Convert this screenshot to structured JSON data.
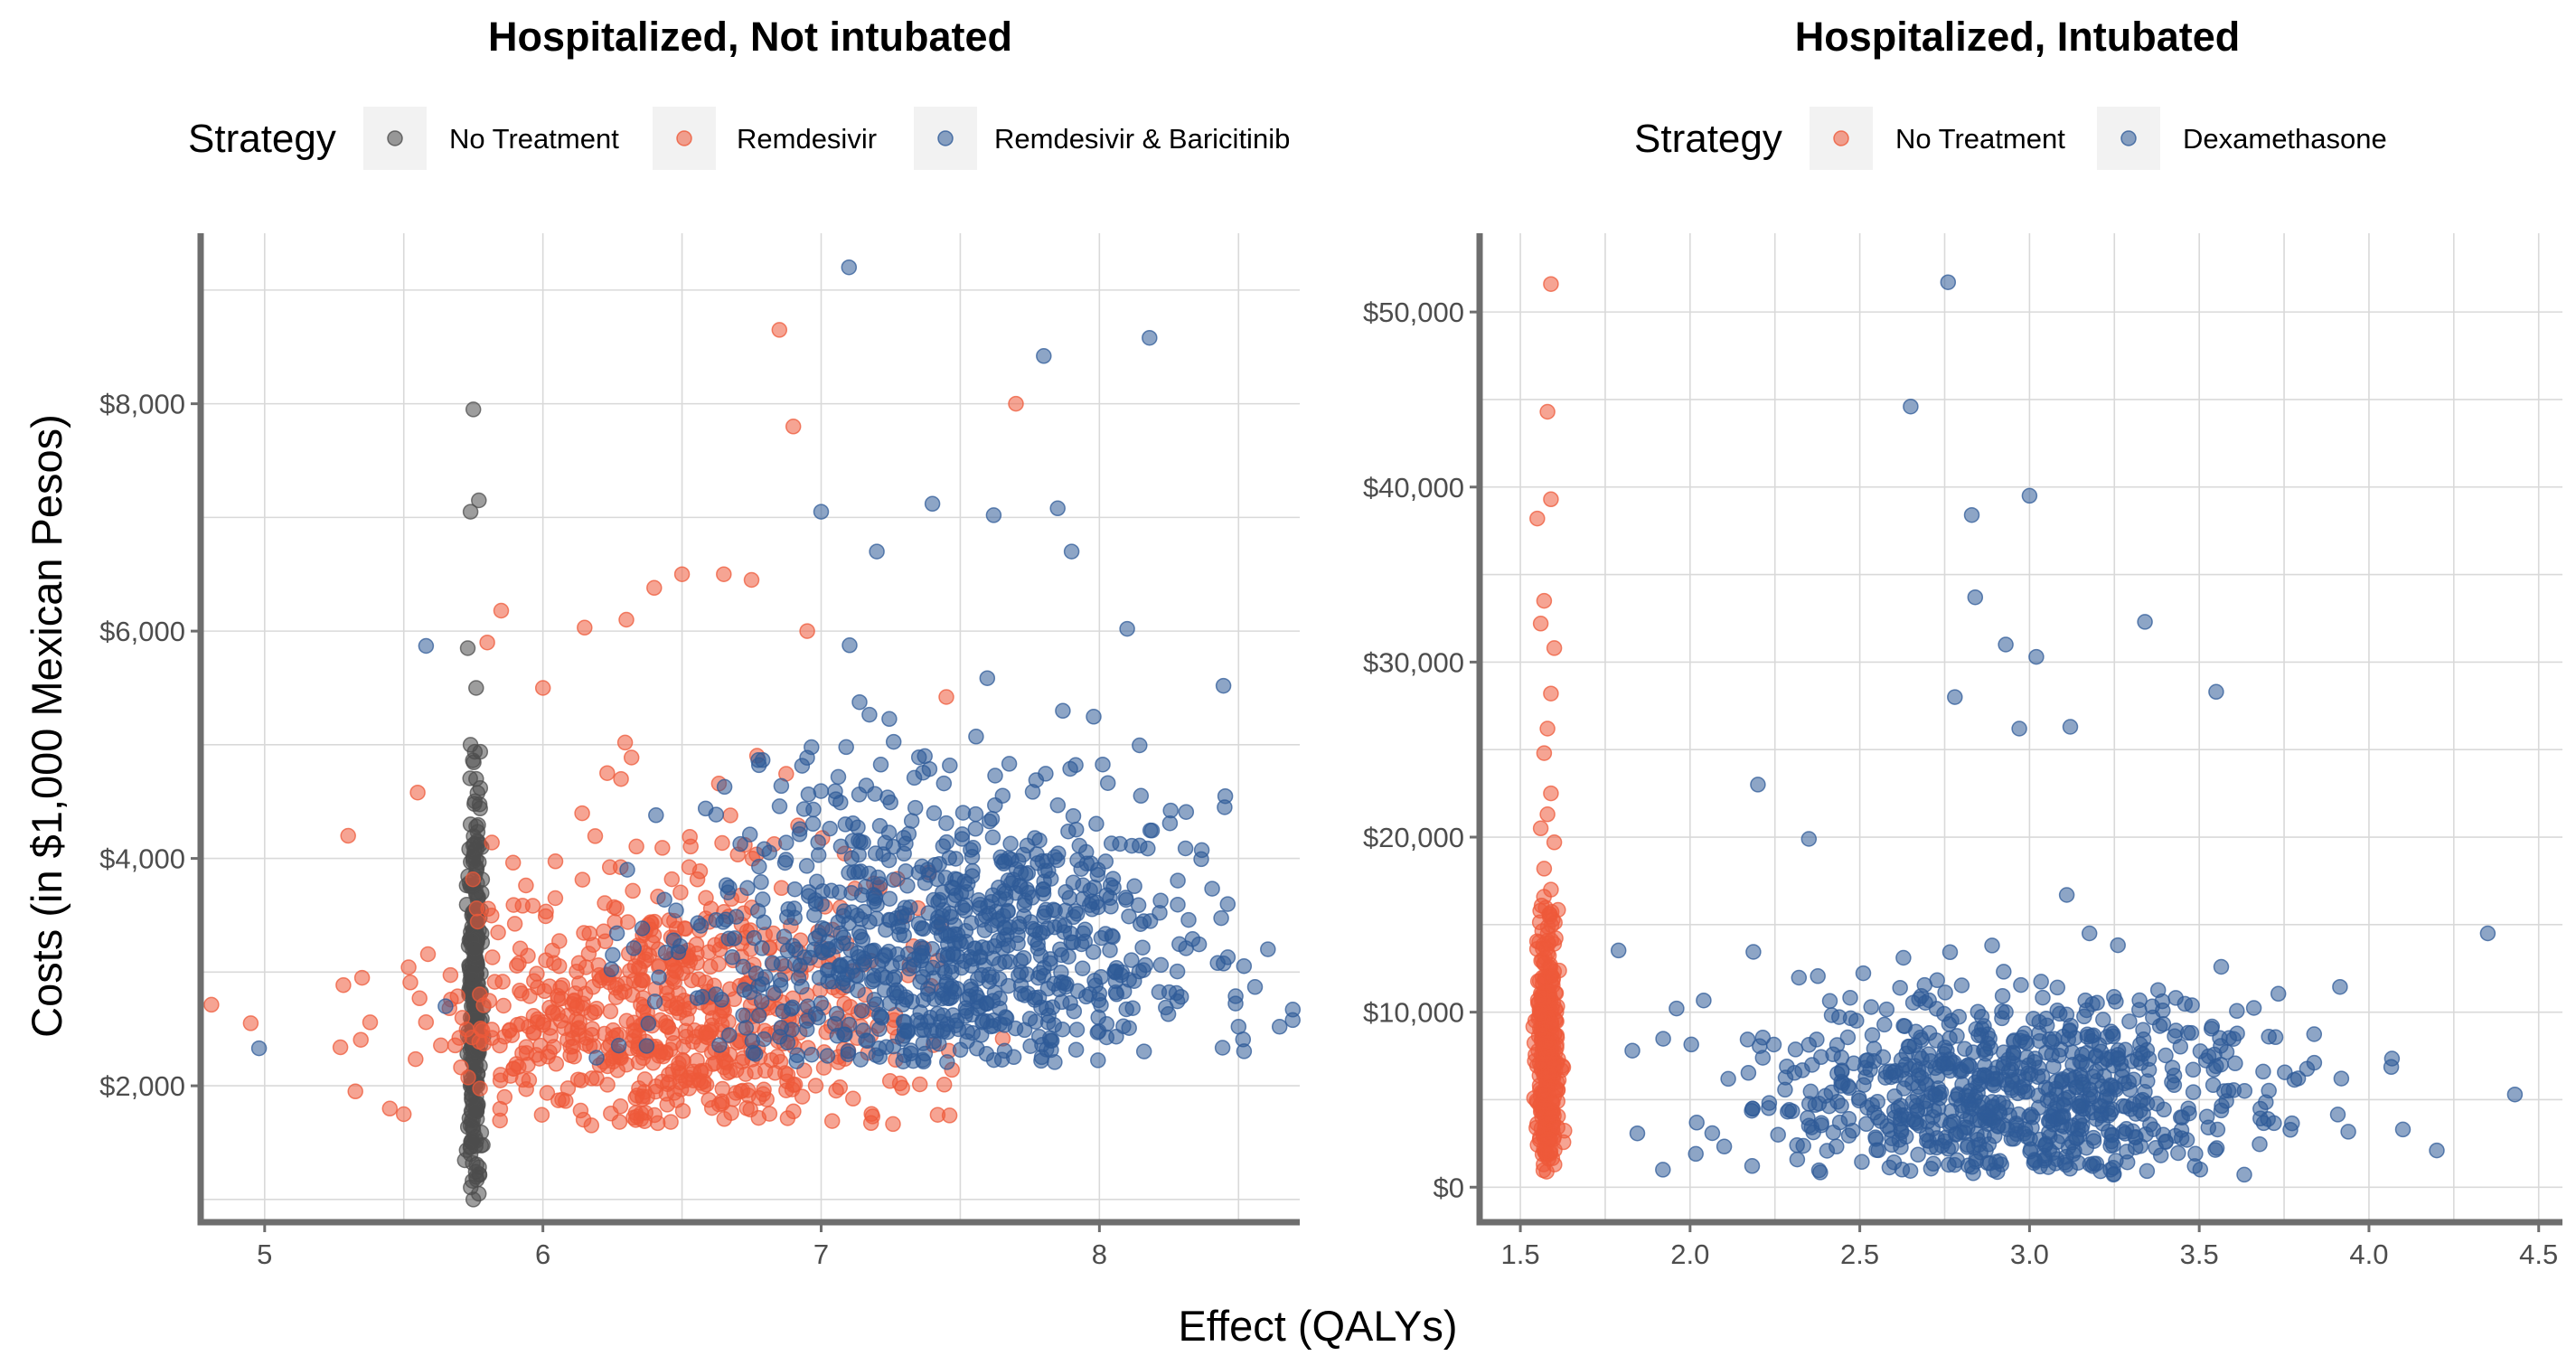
{
  "chart_data": [
    {
      "type": "scatter",
      "title": "Hospitalized, Not intubated",
      "legend_title": "Strategy",
      "legend_position": "top",
      "ylabel": "Costs (in $1,000 Mexican Pesos)",
      "xlim": [
        4.77,
        8.72
      ],
      "ylim": [
        800,
        9500
      ],
      "x_ticks": [
        5,
        6,
        7,
        8
      ],
      "x_tick_labels": [
        "5",
        "6",
        "7",
        "8"
      ],
      "y_ticks": [
        2000,
        4000,
        6000,
        8000
      ],
      "y_tick_labels": [
        "$2,000",
        "$4,000",
        "$6,000",
        "$8,000"
      ],
      "grid": true,
      "series": [
        {
          "name": "No Treatment",
          "color": "#4d4d4d",
          "points": [
            [
              5.75,
              7950
            ],
            [
              5.77,
              7150
            ],
            [
              5.74,
              7050
            ],
            [
              5.73,
              5850
            ],
            [
              5.76,
              5500
            ],
            [
              5.74,
              5000
            ],
            [
              5.76,
              4700
            ],
            [
              5.74,
              4300
            ],
            [
              5.75,
              4000
            ],
            [
              5.76,
              3700
            ],
            [
              5.74,
              3300
            ],
            [
              5.75,
              3000
            ],
            [
              5.77,
              2800
            ],
            [
              5.74,
              2600
            ],
            [
              5.76,
              2400
            ],
            [
              5.75,
              2200
            ],
            [
              5.74,
              2000
            ],
            [
              5.76,
              1800
            ],
            [
              5.75,
              1600
            ],
            [
              5.74,
              1400
            ],
            [
              5.76,
              1200
            ],
            [
              5.75,
              1000
            ]
          ],
          "generated": {
            "count": 300,
            "x_mean": 5.755,
            "x_sd": 0.012,
            "y_mean": 2700,
            "y_sd": 900,
            "y_min": 950,
            "y_max": 5900
          }
        },
        {
          "name": "Remdesivir",
          "color": "#ee5a3a",
          "points": [
            [
              4.95,
              2550
            ],
            [
              5.3,
              4200
            ],
            [
              5.35,
              2950
            ],
            [
              5.45,
              1800
            ],
            [
              5.5,
              1750
            ],
            [
              5.55,
              4580
            ],
            [
              5.8,
              5900
            ],
            [
              5.85,
              6180
            ],
            [
              6.0,
              5500
            ],
            [
              6.15,
              6030
            ],
            [
              6.3,
              6100
            ],
            [
              6.4,
              6380
            ],
            [
              6.5,
              6500
            ],
            [
              6.65,
              6500
            ],
            [
              6.75,
              6450
            ],
            [
              6.85,
              8650
            ],
            [
              6.9,
              7800
            ],
            [
              7.7,
              8000
            ],
            [
              7.45,
              5420
            ],
            [
              6.95,
              6000
            ]
          ],
          "generated": {
            "count": 700,
            "x_mean": 6.45,
            "x_sd": 0.42,
            "y_mean": 2550,
            "y_sd": 750,
            "y_min": 1650,
            "y_max": 6300
          }
        },
        {
          "name": "Remdesivir & Baricitinib",
          "color": "#2f5b98",
          "points": [
            [
              4.98,
              2330
            ],
            [
              5.58,
              5870
            ],
            [
              7.1,
              9200
            ],
            [
              7.8,
              8420
            ],
            [
              8.18,
              8580
            ],
            [
              7.0,
              7050
            ],
            [
              7.4,
              7120
            ],
            [
              7.62,
              7020
            ],
            [
              7.85,
              7080
            ],
            [
              7.9,
              6700
            ],
            [
              8.1,
              6020
            ],
            [
              7.2,
              6700
            ],
            [
              8.5,
              2520
            ],
            [
              8.45,
              4450
            ],
            [
              5.65,
              2700
            ]
          ],
          "generated": {
            "count": 850,
            "x_mean": 7.45,
            "x_sd": 0.45,
            "y_mean": 3150,
            "y_sd": 800,
            "y_min": 2200,
            "y_max": 6600
          }
        }
      ]
    },
    {
      "type": "scatter",
      "title": "Hospitalized, Intubated",
      "legend_title": "Strategy",
      "legend_position": "top",
      "xlabel": "Effect (QALYs)",
      "xlim": [
        1.38,
        4.57
      ],
      "ylim": [
        -2000,
        54500
      ],
      "x_ticks": [
        1.5,
        2.0,
        2.5,
        3.0,
        3.5,
        4.0,
        4.5
      ],
      "x_tick_labels": [
        "1.5",
        "2.0",
        "2.5",
        "3.0",
        "3.5",
        "4.0",
        "4.5"
      ],
      "y_ticks": [
        0,
        10000,
        20000,
        30000,
        40000,
        50000
      ],
      "y_tick_labels": [
        "$0",
        "$10,000",
        "$20,000",
        "$30,000",
        "$40,000",
        "$50,000"
      ],
      "grid": true,
      "series": [
        {
          "name": "No Treatment",
          "color": "#ee5a3a",
          "points": [
            [
              1.59,
              51600
            ],
            [
              1.58,
              44300
            ],
            [
              1.59,
              39300
            ],
            [
              1.55,
              38200
            ],
            [
              1.6,
              30800
            ],
            [
              1.57,
              33500
            ],
            [
              1.56,
              32200
            ],
            [
              1.59,
              28200
            ],
            [
              1.58,
              26200
            ],
            [
              1.57,
              24800
            ],
            [
              1.59,
              22500
            ],
            [
              1.58,
              21300
            ],
            [
              1.56,
              20500
            ],
            [
              1.6,
              19700
            ],
            [
              1.57,
              18200
            ],
            [
              1.59,
              17000
            ]
          ],
          "generated": {
            "count": 320,
            "x_mean": 1.58,
            "x_sd": 0.017,
            "y_mean": 7500,
            "y_sd": 4500,
            "y_min": 800,
            "y_max": 17000
          }
        },
        {
          "name": "Dexamethasone",
          "color": "#2f5b98",
          "points": [
            [
              2.76,
              51700
            ],
            [
              2.65,
              44600
            ],
            [
              3.0,
              39500
            ],
            [
              2.83,
              38400
            ],
            [
              2.84,
              33700
            ],
            [
              3.34,
              32300
            ],
            [
              2.93,
              31000
            ],
            [
              3.02,
              30300
            ],
            [
              2.78,
              28000
            ],
            [
              3.55,
              28300
            ],
            [
              2.97,
              26200
            ],
            [
              3.12,
              26300
            ],
            [
              2.2,
              23000
            ],
            [
              4.35,
              14500
            ],
            [
              4.43,
              5300
            ],
            [
              1.83,
              7800
            ],
            [
              1.92,
              1000
            ],
            [
              2.35,
              19900
            ],
            [
              4.1,
              3300
            ],
            [
              4.2,
              2100
            ]
          ],
          "generated": {
            "count": 780,
            "x_mean": 2.98,
            "x_sd": 0.38,
            "y_mean": 5200,
            "y_sd": 3300,
            "y_min": 700,
            "y_max": 19500
          }
        }
      ]
    }
  ]
}
